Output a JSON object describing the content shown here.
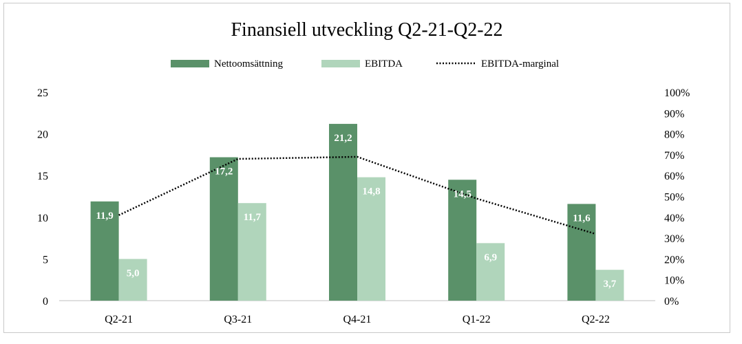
{
  "chart_data": {
    "type": "bar",
    "title": "Finansiell utveckling Q2-21-Q2-22",
    "categories": [
      "Q2-21",
      "Q3-21",
      "Q4-21",
      "Q1-22",
      "Q2-22"
    ],
    "series": [
      {
        "name": "Nettoomsättning",
        "kind": "bar",
        "axis": "left",
        "color": "#5a9169",
        "values": [
          11.9,
          17.2,
          21.2,
          14.5,
          11.6
        ],
        "labels": [
          "11,9",
          "17,2",
          "21,2",
          "14,5",
          "11,6"
        ]
      },
      {
        "name": "EBITDA",
        "kind": "bar",
        "axis": "left",
        "color": "#b0d5bb",
        "values": [
          5.0,
          11.7,
          14.8,
          6.9,
          3.7
        ],
        "labels": [
          "5,0",
          "11,7",
          "14,8",
          "6,9",
          "3,7"
        ]
      },
      {
        "name": "EBITDA-marginal",
        "kind": "line",
        "style": "dotted",
        "axis": "right",
        "color": "#000000",
        "values": [
          41,
          68,
          69,
          49,
          32
        ]
      }
    ],
    "y_left": {
      "ylim": [
        0,
        25
      ],
      "ticks": [
        "0",
        "5",
        "10",
        "15",
        "20",
        "25"
      ]
    },
    "y_right": {
      "ylim": [
        0,
        100
      ],
      "ticks": [
        "0%",
        "10%",
        "20%",
        "30%",
        "40%",
        "50%",
        "60%",
        "70%",
        "80%",
        "90%",
        "100%"
      ]
    },
    "legend_position": "top",
    "grid": false
  }
}
